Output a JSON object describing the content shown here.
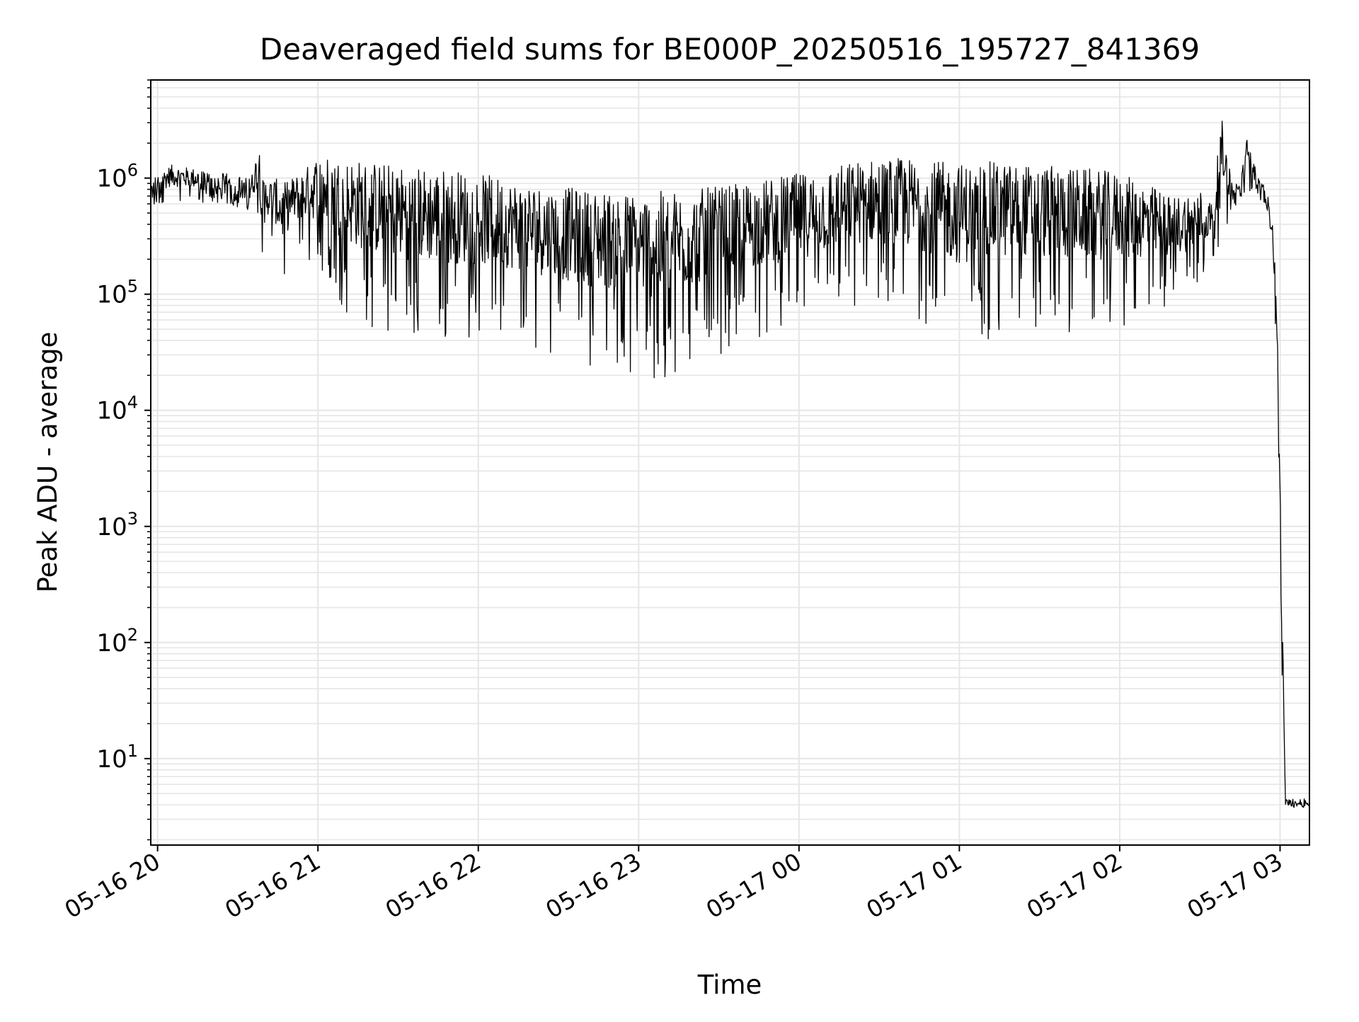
{
  "chart_data": {
    "type": "line",
    "title": "Deaveraged field sums for BE000P_20250516_195727_841369",
    "xlabel": "Time",
    "ylabel": "Peak ADU - average",
    "yscale": "log",
    "ylim": [
      1.8,
      7000000
    ],
    "xlim": [
      "2025-05-16 19:57:27",
      "2025-05-17 03:11:00"
    ],
    "grid": true,
    "line_color": "#000000",
    "grid_color": "#e6e6e6",
    "x_ticks": [
      {
        "value": "2025-05-16 20:00",
        "label": "05-16 20"
      },
      {
        "value": "2025-05-16 21:00",
        "label": "05-16 21"
      },
      {
        "value": "2025-05-16 22:00",
        "label": "05-16 22"
      },
      {
        "value": "2025-05-16 23:00",
        "label": "05-16 23"
      },
      {
        "value": "2025-05-17 00:00",
        "label": "05-17 00"
      },
      {
        "value": "2025-05-17 01:00",
        "label": "05-17 01"
      },
      {
        "value": "2025-05-17 02:00",
        "label": "05-17 02"
      },
      {
        "value": "2025-05-17 03:00",
        "label": "05-17 03"
      }
    ],
    "y_ticks": [
      {
        "value": 10,
        "base": "10",
        "exp": "1"
      },
      {
        "value": 100,
        "base": "10",
        "exp": "2"
      },
      {
        "value": 1000,
        "base": "10",
        "exp": "3"
      },
      {
        "value": 10000,
        "base": "10",
        "exp": "4"
      },
      {
        "value": 100000,
        "base": "10",
        "exp": "5"
      },
      {
        "value": 1000000,
        "base": "10",
        "exp": "6"
      }
    ],
    "series": [
      {
        "x": [
          "2025-05-16 19:57:27",
          "2025-05-16 20:05",
          "2025-05-16 20:15",
          "2025-05-16 20:25",
          "2025-05-16 20:35",
          "2025-05-16 20:38",
          "2025-05-16 20:39",
          "2025-05-16 20:40",
          "2025-05-16 20:44",
          "2025-05-16 20:47",
          "2025-05-16 20:50",
          "2025-05-16 20:55",
          "2025-05-16 21:00",
          "2025-05-16 21:10",
          "2025-05-16 21:20",
          "2025-05-16 21:30",
          "2025-05-16 21:40",
          "2025-05-16 21:50",
          "2025-05-16 22:00",
          "2025-05-16 22:10",
          "2025-05-16 22:20",
          "2025-05-16 22:30",
          "2025-05-16 22:40",
          "2025-05-16 22:50",
          "2025-05-16 23:00",
          "2025-05-16 23:10",
          "2025-05-16 23:20",
          "2025-05-16 23:30",
          "2025-05-16 23:40",
          "2025-05-16 23:50",
          "2025-05-17 00:00",
          "2025-05-17 00:10",
          "2025-05-17 00:20",
          "2025-05-17 00:30",
          "2025-05-17 00:40",
          "2025-05-17 00:50",
          "2025-05-17 01:00",
          "2025-05-17 01:10",
          "2025-05-17 01:20",
          "2025-05-17 01:30",
          "2025-05-17 01:40",
          "2025-05-17 01:50",
          "2025-05-17 02:00",
          "2025-05-17 02:10",
          "2025-05-17 02:20",
          "2025-05-17 02:30",
          "2025-05-17 02:35",
          "2025-05-17 02:38",
          "2025-05-17 02:42",
          "2025-05-17 02:45",
          "2025-05-17 02:48",
          "2025-05-17 02:52",
          "2025-05-17 02:55",
          "2025-05-17 02:57",
          "2025-05-17 02:58",
          "2025-05-17 02:59",
          "2025-05-17 03:00",
          "2025-05-17 03:01",
          "2025-05-17 03:02",
          "2025-05-17 03:11"
        ],
        "hi": [
          1000000,
          1300000,
          1200000,
          1100000,
          1000000,
          2100000,
          950000,
          1000000,
          1000000,
          900000,
          1000000,
          1200000,
          1600000,
          1500000,
          1400000,
          1300000,
          1250000,
          1200000,
          1100000,
          1000000,
          900000,
          850000,
          800000,
          780000,
          750000,
          780000,
          800000,
          850000,
          900000,
          1000000,
          1100000,
          1200000,
          1400000,
          1500000,
          1500000,
          1400000,
          1350000,
          1400000,
          1350000,
          1300000,
          1250000,
          1200000,
          1100000,
          900000,
          700000,
          800000,
          600000,
          3500000,
          900000,
          1000000,
          2500000,
          1000000,
          800000,
          500000,
          200000,
          50000,
          2600,
          130,
          4.5,
          4.5
        ],
        "lo": [
          550000,
          600000,
          600000,
          600000,
          500000,
          400000,
          200000,
          300000,
          200000,
          110000,
          200000,
          200000,
          150000,
          70000,
          50000,
          45000,
          40000,
          40000,
          40000,
          40000,
          35000,
          30000,
          25000,
          22000,
          18000,
          15000,
          25000,
          30000,
          40000,
          45000,
          50000,
          60000,
          70000,
          70000,
          60000,
          50000,
          35000,
          40000,
          45000,
          45000,
          45000,
          45000,
          50000,
          60000,
          80000,
          100000,
          200000,
          300000,
          500000,
          600000,
          600000,
          700000,
          500000,
          300000,
          60000,
          20000,
          500,
          4,
          3.8,
          3.8
        ]
      }
    ]
  }
}
